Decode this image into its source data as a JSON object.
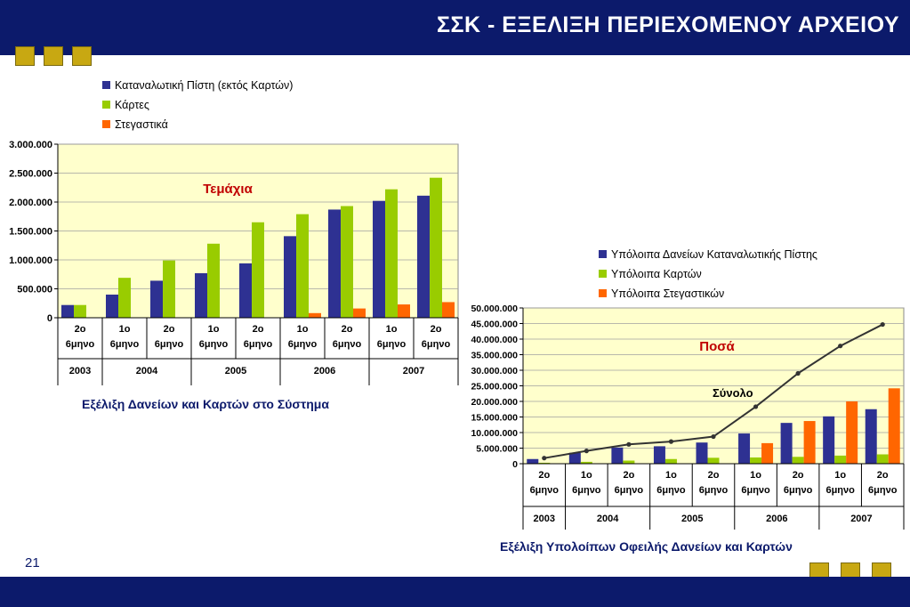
{
  "slide": {
    "title": "ΣΣΚ - ΕΞΕΛΙΞΗ ΠΕΡΙΕΧΟΜΕΝΟΥ ΑΡΧΕΙΟΥ",
    "page_number": "21",
    "caption_left": "Εξέλιξη Δανείων και Καρτών στο Σύστημα",
    "caption_right": "Εξέλιξη Υπολοίπων Οφειλής Δανείων και Καρτών"
  },
  "colors": {
    "navy": "#0c1a6b",
    "gold": "#c8a812",
    "blue": "#2e3192",
    "green": "#99cc00",
    "orange": "#ff6600",
    "plot_bg": "#ffffcc"
  },
  "chart_data": [
    {
      "type": "bar",
      "title": "Τεμάχια",
      "categories": [
        "2o 6μηνο",
        "1o 6μηνο",
        "2o 6μηνο",
        "1o 6μηνο",
        "2o 6μηνο",
        "1o 6μηνο",
        "2o 6μηνο",
        "1o 6μηνο",
        "2o 6μηνο"
      ],
      "year_groups": [
        {
          "label": "2003",
          "span": 1
        },
        {
          "label": "2004",
          "span": 2
        },
        {
          "label": "2005",
          "span": 2
        },
        {
          "label": "2006",
          "span": 2
        },
        {
          "label": "2007",
          "span": 2
        }
      ],
      "series": [
        {
          "name": "Καταναλωτική Πίστη (εκτός Καρτών)",
          "color": "#2e3192",
          "values": [
            220000,
            400000,
            640000,
            770000,
            940000,
            1410000,
            1870000,
            2020000,
            2110000
          ]
        },
        {
          "name": "Κάρτες",
          "color": "#99cc00",
          "values": [
            220000,
            690000,
            990000,
            1280000,
            1650000,
            1790000,
            1930000,
            2220000,
            2420000
          ]
        },
        {
          "name": "Στεγαστικά",
          "color": "#ff6600",
          "values": [
            0,
            0,
            0,
            0,
            0,
            80000,
            160000,
            230000,
            270000
          ]
        }
      ],
      "ylim": [
        0,
        3000000
      ],
      "yticks": [
        0,
        500000,
        1000000,
        1500000,
        2000000,
        2500000,
        3000000
      ],
      "ytick_labels": [
        "0",
        "500.000",
        "1.000.000",
        "1.500.000",
        "2.000.000",
        "2.500.000",
        "3.000.000"
      ],
      "legend": "top",
      "grid": true
    },
    {
      "type": "bar",
      "title": "Ποσά",
      "categories": [
        "2o 6μηνο",
        "1o 6μηνο",
        "2o 6μηνο",
        "1o 6μηνο",
        "2o 6μηνο",
        "1o 6μηνο",
        "2o 6μηνο",
        "1o 6μηνο",
        "2o 6μηνο"
      ],
      "year_groups": [
        {
          "label": "2003",
          "span": 1
        },
        {
          "label": "2004",
          "span": 2
        },
        {
          "label": "2005",
          "span": 2
        },
        {
          "label": "2006",
          "span": 2
        },
        {
          "label": "2007",
          "span": 2
        }
      ],
      "series": [
        {
          "name": "Υπόλοιπα Δανείων Καταναλωτικής Πίστης",
          "color": "#2e3192",
          "values": [
            1500000,
            3500000,
            5200000,
            5600000,
            6800000,
            9700000,
            13100000,
            15200000,
            17500000
          ]
        },
        {
          "name": "Υπόλοιπα Καρτών",
          "color": "#99cc00",
          "values": [
            300000,
            600000,
            1000000,
            1500000,
            1900000,
            2000000,
            2200000,
            2600000,
            3000000
          ]
        },
        {
          "name": "Υπόλοιπα Στεγαστικών",
          "color": "#ff6600",
          "values": [
            0,
            0,
            0,
            0,
            0,
            6600000,
            13700000,
            20000000,
            24200000
          ]
        }
      ],
      "total_line": {
        "name": "Σύνολο",
        "color": "#333333",
        "values": [
          1800000,
          4100000,
          6200000,
          7100000,
          8700000,
          18300000,
          29000000,
          37800000,
          44700000
        ]
      },
      "ylim": [
        0,
        50000000
      ],
      "yticks": [
        0,
        5000000,
        10000000,
        15000000,
        20000000,
        25000000,
        30000000,
        35000000,
        40000000,
        45000000,
        50000000
      ],
      "ytick_labels": [
        "0",
        "5.000.000",
        "10.000.000",
        "15.000.000",
        "20.000.000",
        "25.000.000",
        "30.000.000",
        "35.000.000",
        "40.000.000",
        "45.000.000",
        "50.000.000"
      ],
      "legend": "top",
      "grid": true
    }
  ]
}
